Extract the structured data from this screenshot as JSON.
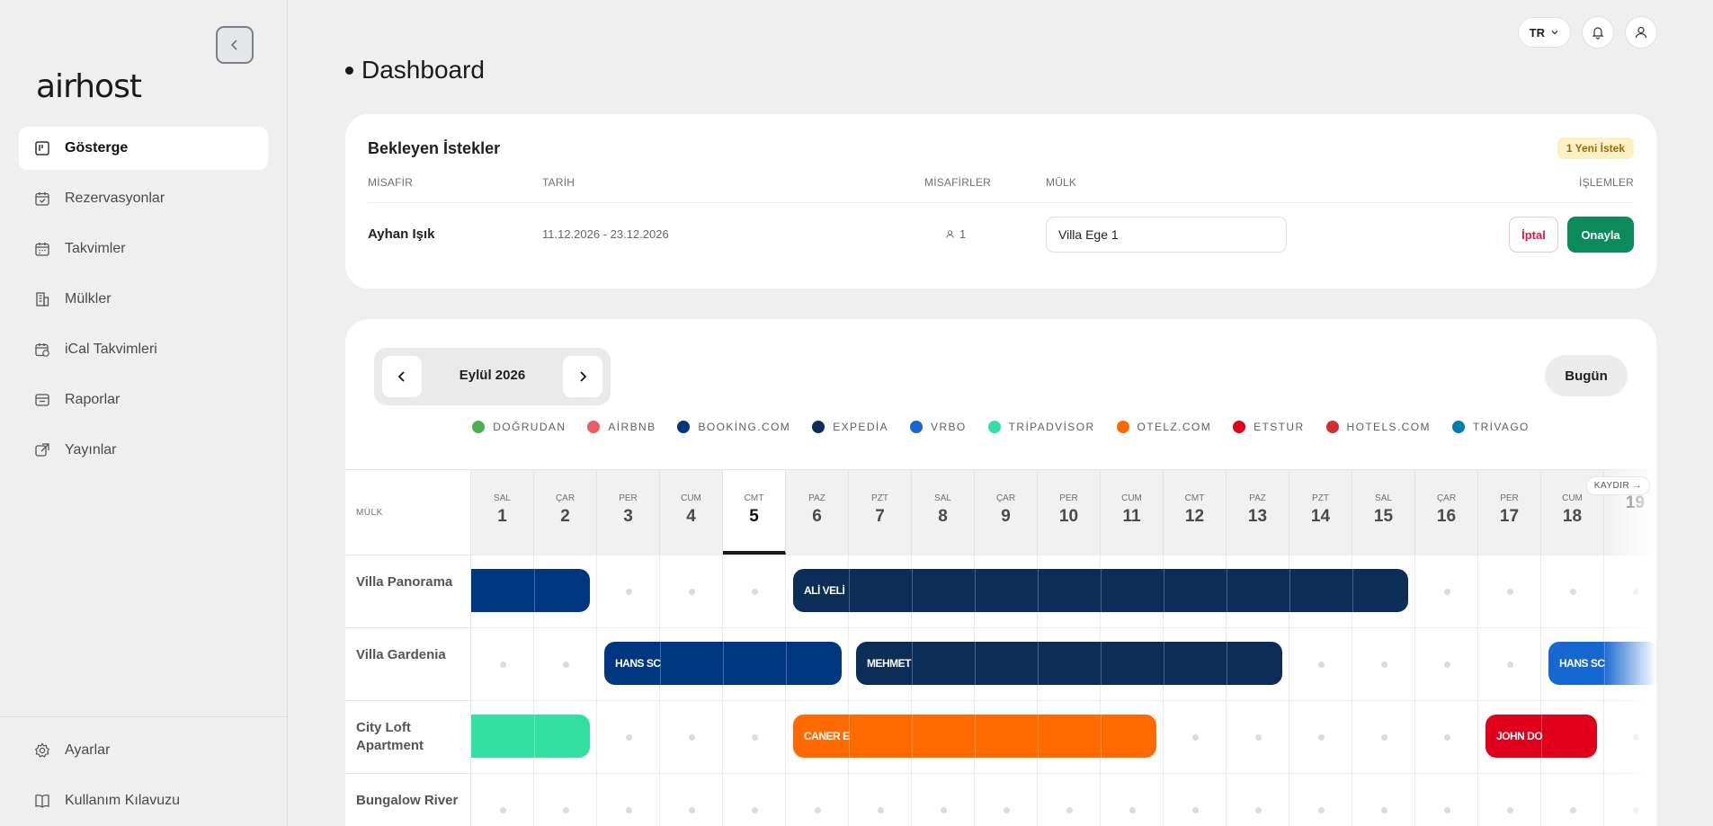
{
  "logo": "airhost",
  "nav": {
    "items": [
      {
        "label": "Gösterge",
        "icon": "dashboard-icon"
      },
      {
        "label": "Rezervasyonlar",
        "icon": "calendar-check-icon"
      },
      {
        "label": "Takvimler",
        "icon": "calendar-icon"
      },
      {
        "label": "Mülkler",
        "icon": "building-icon"
      },
      {
        "label": "iCal Takvimleri",
        "icon": "calendar-sync-icon"
      },
      {
        "label": "Raporlar",
        "icon": "report-icon"
      },
      {
        "label": "Yayınlar",
        "icon": "external-link-icon"
      }
    ],
    "bottom": [
      {
        "label": "Ayarlar",
        "icon": "gear-icon"
      },
      {
        "label": "Kullanım Kılavuzu",
        "icon": "book-icon"
      }
    ]
  },
  "topbar": {
    "lang": "TR"
  },
  "page_title": "Dashboard",
  "pending": {
    "title": "Bekleyen İstekler",
    "badge": "1 Yeni İstek",
    "headers": {
      "guest": "MİSAFİR",
      "date": "TARİH",
      "guests": "MİSAFİRLER",
      "property": "MÜLK",
      "actions": "İŞLEMLER"
    },
    "row": {
      "guest": "Ayhan Işık",
      "date": "11.12.2026 - 23.12.2026",
      "guests": "1",
      "property": "Villa Ege 1",
      "cancel": "İptal",
      "approve": "Onayla"
    }
  },
  "calendar": {
    "month": "Eylül 2026",
    "today_label": "Bugün",
    "legend": [
      {
        "name": "DOĞRUDAN",
        "color": "#4caf50"
      },
      {
        "name": "AİRBNB",
        "color": "#f05a63"
      },
      {
        "name": "BOOKİNG.COM",
        "color": "#003580"
      },
      {
        "name": "EXPEDİA",
        "color": "#0b2d57"
      },
      {
        "name": "VRBO",
        "color": "#1668d0"
      },
      {
        "name": "TRİPADVİSOR",
        "color": "#34e0a1"
      },
      {
        "name": "OTELZ.COM",
        "color": "#ff6a00"
      },
      {
        "name": "ETSTUR",
        "color": "#e0001b"
      },
      {
        "name": "HOTELS.COM",
        "color": "#d32f2f"
      },
      {
        "name": "TRİVAGO",
        "color": "#007fad"
      }
    ],
    "prop_header": "MÜLK",
    "scroll_hint": "KAYDIR →",
    "days": [
      {
        "dow": "SAL",
        "num": "1"
      },
      {
        "dow": "ÇAR",
        "num": "2"
      },
      {
        "dow": "PER",
        "num": "3"
      },
      {
        "dow": "CUM",
        "num": "4"
      },
      {
        "dow": "CMT",
        "num": "5"
      },
      {
        "dow": "PAZ",
        "num": "6"
      },
      {
        "dow": "PZT",
        "num": "7"
      },
      {
        "dow": "SAL",
        "num": "8"
      },
      {
        "dow": "ÇAR",
        "num": "9"
      },
      {
        "dow": "PER",
        "num": "10"
      },
      {
        "dow": "CUM",
        "num": "11"
      },
      {
        "dow": "CMT",
        "num": "12"
      },
      {
        "dow": "PAZ",
        "num": "13"
      },
      {
        "dow": "PZT",
        "num": "14"
      },
      {
        "dow": "SAL",
        "num": "15"
      },
      {
        "dow": "ÇAR",
        "num": "16"
      },
      {
        "dow": "PER",
        "num": "17"
      },
      {
        "dow": "CUM",
        "num": "18"
      },
      {
        "dow": "",
        "num": "19"
      }
    ],
    "today_day": 5,
    "properties": [
      "Villa Panorama",
      "Villa Gardenia",
      "City Loft Apartment",
      "Bungalow River"
    ],
    "bookings": [
      {
        "row": 0,
        "start_day": 1,
        "end_day": 2,
        "label": "",
        "color": "#003580",
        "clip_left": true
      },
      {
        "row": 0,
        "start_day": 6,
        "end_day": 15,
        "label": "ALİ VELİ",
        "color": "#0b2d57"
      },
      {
        "row": 1,
        "start_day": 3,
        "end_day": 6,
        "label": "HANS SC",
        "color": "#003580"
      },
      {
        "row": 1,
        "start_day": 7,
        "end_day": 13,
        "label": "MEHMET",
        "color": "#0b2d57"
      },
      {
        "row": 1,
        "start_day": 18,
        "end_day": 19,
        "label": "HANS SC",
        "color": "#1668d0"
      },
      {
        "row": 2,
        "start_day": 1,
        "end_day": 2,
        "label": "",
        "color": "#34e0a1",
        "clip_left": true
      },
      {
        "row": 2,
        "start_day": 6,
        "end_day": 11,
        "label": "CANER E",
        "color": "#ff6a00"
      },
      {
        "row": 2,
        "start_day": 17,
        "end_day": 18,
        "label": "JOHN DO",
        "color": "#e0001b"
      }
    ]
  }
}
